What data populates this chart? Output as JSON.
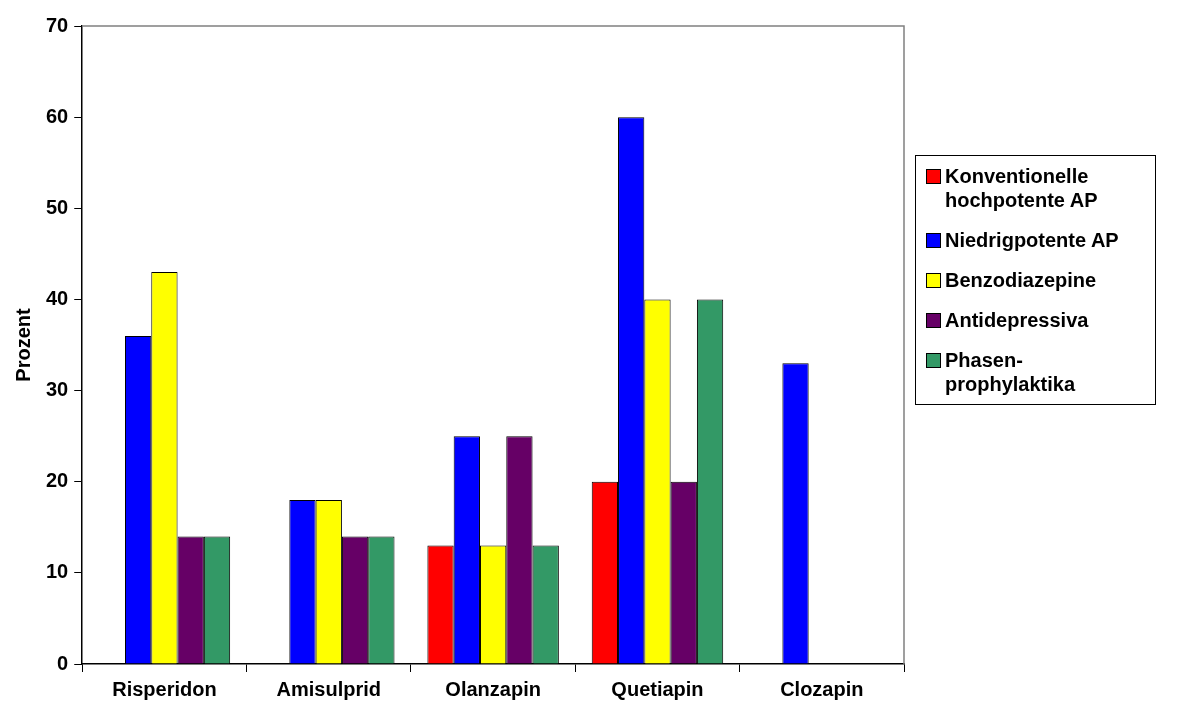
{
  "chart_data": {
    "type": "bar",
    "ylabel": "Prozent",
    "categories": [
      "Risperidon",
      "Amisulprid",
      "Olanzapin",
      "Quetiapin",
      "Clozapin"
    ],
    "series": [
      {
        "name": "Konventionelle hochpotente AP",
        "color": "#ff0000",
        "values": [
          null,
          null,
          13,
          20,
          null
        ]
      },
      {
        "name": "Niedrigpotente AP",
        "color": "#0000ff",
        "values": [
          36,
          18,
          25,
          60,
          33
        ]
      },
      {
        "name": "Benzodiazepine",
        "color": "#ffff00",
        "values": [
          43,
          18,
          13,
          40,
          null
        ]
      },
      {
        "name": "Antidepressiva",
        "color": "#660066",
        "values": [
          14,
          14,
          25,
          20,
          null
        ]
      },
      {
        "name": "Phasen-prophylaktika",
        "color": "#339966",
        "values": [
          14,
          14,
          13,
          40,
          null
        ]
      }
    ],
    "ylim": [
      0,
      70
    ],
    "yticks": [
      0,
      10,
      20,
      30,
      40,
      50,
      60,
      70
    ],
    "grid": false,
    "legend": "right"
  }
}
